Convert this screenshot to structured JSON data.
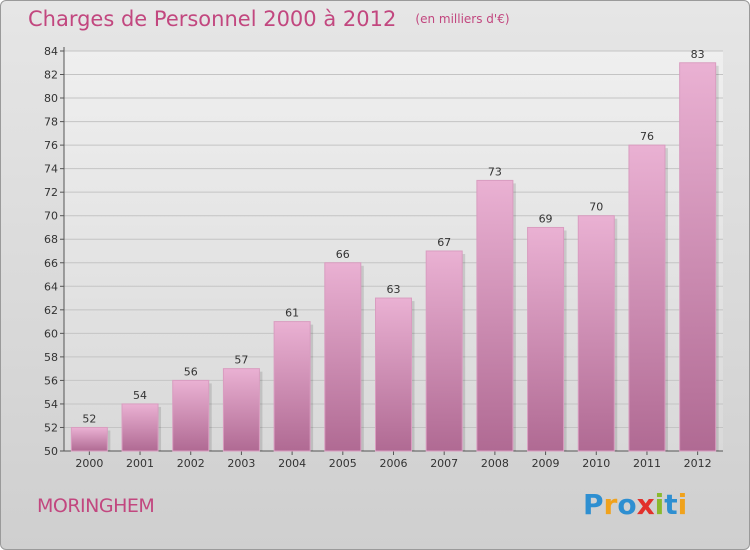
{
  "header": {
    "title": "Charges de Personnel 2000 à 2012",
    "unit": "(en milliers d'€)"
  },
  "footer": {
    "commune": "MORINGHEM",
    "logo_text": "Proxiti",
    "logo_letters": [
      {
        "ch": "P",
        "color": "#2e8fd1"
      },
      {
        "ch": "r",
        "color": "#f0a21c"
      },
      {
        "ch": "o",
        "color": "#2e8fd1"
      },
      {
        "ch": "x",
        "color": "#e2302b"
      },
      {
        "ch": "i",
        "color": "#8ab92d"
      },
      {
        "ch": "t",
        "color": "#2e8fd1"
      },
      {
        "ch": "i",
        "color": "#f0a21c"
      }
    ]
  },
  "colors": {
    "accent": "#c2477f",
    "bar_light": "#eab1d3",
    "bar_dark": "#b06a93",
    "background": "#dcdcdc"
  },
  "chart_data": {
    "type": "bar",
    "categories": [
      "2000",
      "2001",
      "2002",
      "2003",
      "2004",
      "2005",
      "2006",
      "2007",
      "2008",
      "2009",
      "2010",
      "2011",
      "2012"
    ],
    "values": [
      52,
      54,
      56,
      57,
      61,
      66,
      63,
      67,
      73,
      69,
      70,
      76,
      83
    ],
    "data_labels": [
      "52",
      "54",
      "56",
      "57",
      "61",
      "66",
      "63",
      "67",
      "73",
      "69",
      "70",
      "76",
      "83"
    ],
    "title": "Charges de Personnel 2000 à 2012",
    "subtitle": "(en milliers d'€)",
    "xlabel": "",
    "ylabel": "",
    "ylim": [
      50,
      84
    ],
    "yticks": [
      50,
      52,
      54,
      56,
      58,
      60,
      62,
      64,
      66,
      68,
      70,
      72,
      74,
      76,
      78,
      80,
      82,
      84
    ],
    "grid": true,
    "legend": "none"
  }
}
